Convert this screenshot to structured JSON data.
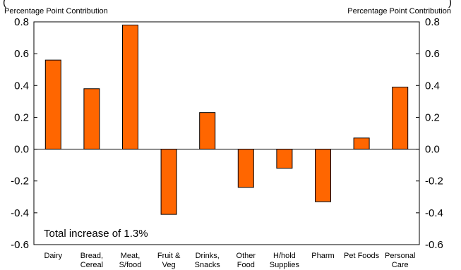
{
  "chart_data": {
    "type": "bar",
    "title_fragment_left": "(",
    "title_fragment_right": ")",
    "left_unit_label": "Percentage Point Contribution",
    "right_unit_label": "Percentage Point Contribution",
    "categories": [
      [
        "Dairy"
      ],
      [
        "Bread,",
        "Cereal"
      ],
      [
        "Meat,",
        "S/food"
      ],
      [
        "Fruit &",
        "Veg"
      ],
      [
        "Drinks,",
        "Snacks"
      ],
      [
        "Other",
        "Food"
      ],
      [
        "H/hold",
        "Supplies"
      ],
      [
        "Pharm"
      ],
      [
        "Pet Foods"
      ],
      [
        "Personal",
        "Care"
      ]
    ],
    "values": [
      0.56,
      0.38,
      0.78,
      -0.41,
      0.23,
      -0.24,
      -0.12,
      -0.33,
      0.07,
      0.39
    ],
    "ylim": [
      -0.6,
      0.8
    ],
    "yticks": [
      "-0.6",
      "-0.4",
      "-0.2",
      "0.0",
      "0.2",
      "0.4",
      "0.6",
      "0.8"
    ],
    "ytick_values": [
      -0.6,
      -0.4,
      -0.2,
      0.0,
      0.2,
      0.4,
      0.6,
      0.8
    ],
    "annotation": "Total increase of 1.3%",
    "bar_color": "#FF6600",
    "grid": false,
    "legend": "none"
  }
}
